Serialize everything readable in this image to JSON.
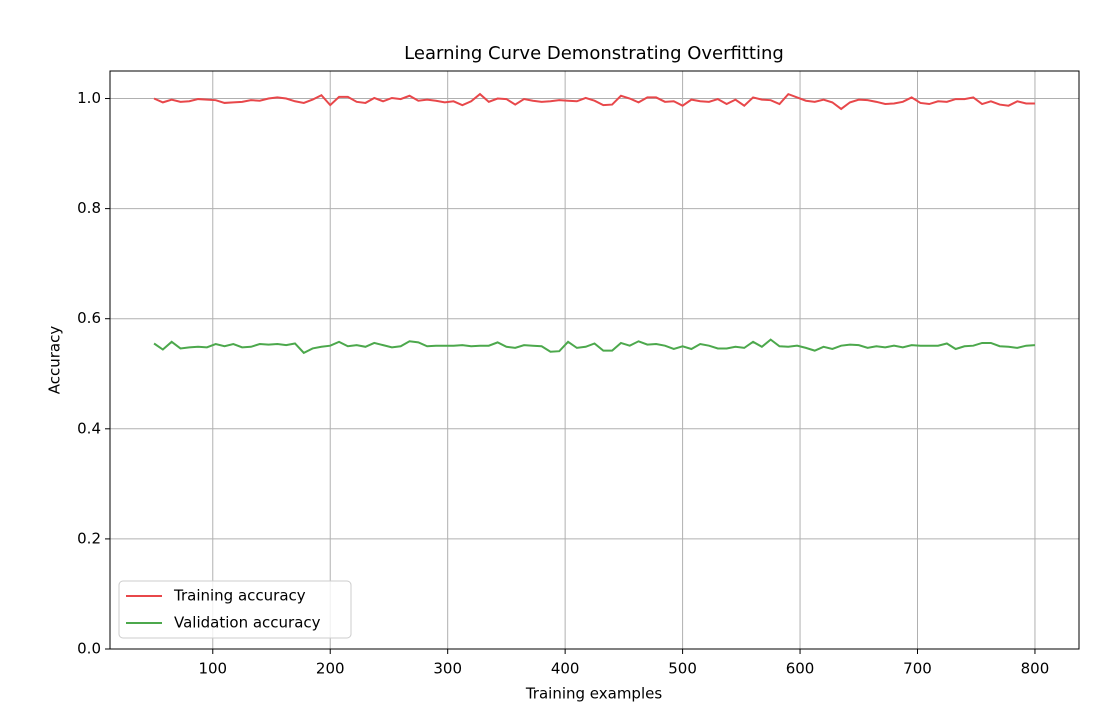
{
  "chart_data": {
    "type": "line",
    "title": "Learning Curve Demonstrating Overfitting",
    "x_label": "Training examples",
    "y_label": "Accuracy",
    "x": [
      50,
      57.5,
      65,
      72.5,
      80,
      87.5,
      95,
      102.5,
      110,
      117.5,
      125,
      132.5,
      140,
      147.5,
      155,
      162.5,
      170,
      177.5,
      185,
      192.5,
      200,
      207.5,
      215,
      222.5,
      230,
      237.5,
      245,
      252.5,
      260,
      267.5,
      275,
      282.5,
      290,
      297.5,
      305,
      312.5,
      320,
      327.5,
      335,
      342.5,
      350,
      357.5,
      365,
      372.5,
      380,
      387.5,
      395,
      402.5,
      410,
      417.5,
      425,
      432.5,
      440,
      447.5,
      455,
      462.5,
      470,
      477.5,
      485,
      492.5,
      500,
      507.5,
      515,
      522.5,
      530,
      537.5,
      545,
      552.5,
      560,
      567.5,
      575,
      582.5,
      590,
      597.5,
      605,
      612.5,
      620,
      627.5,
      635,
      642.5,
      650,
      657.5,
      665,
      672.5,
      680,
      687.5,
      695,
      702.5,
      710,
      717.5,
      725,
      732.5,
      740,
      747.5,
      755,
      762.5,
      770,
      777.5,
      785,
      792.5,
      800
    ],
    "series": [
      {
        "name": "Training accuracy",
        "color": "#e8474a",
        "values": [
          1.0,
          0.993,
          0.998,
          0.994,
          0.995,
          0.999,
          0.998,
          0.997,
          0.992,
          0.993,
          0.994,
          0.997,
          0.996,
          1.0,
          1.002,
          1.0,
          0.995,
          0.992,
          0.998,
          1.006,
          0.988,
          1.003,
          1.003,
          0.994,
          0.992,
          1.001,
          0.995,
          1.001,
          0.999,
          1.005,
          0.996,
          0.998,
          0.996,
          0.993,
          0.995,
          0.988,
          0.995,
          1.008,
          0.994,
          1.0,
          0.999,
          0.989,
          0.999,
          0.996,
          0.994,
          0.995,
          0.997,
          0.996,
          0.995,
          1.001,
          0.996,
          0.988,
          0.989,
          1.005,
          1.0,
          0.993,
          1.002,
          1.002,
          0.994,
          0.995,
          0.987,
          0.998,
          0.995,
          0.994,
          0.999,
          0.99,
          0.998,
          0.987,
          1.002,
          0.998,
          0.997,
          0.99,
          1.008,
          1.002,
          0.996,
          0.994,
          0.998,
          0.993,
          0.981,
          0.993,
          0.998,
          0.997,
          0.994,
          0.99,
          0.991,
          0.994,
          1.002,
          0.992,
          0.99,
          0.995,
          0.994,
          0.999,
          0.999,
          1.002,
          0.99,
          0.995,
          0.989,
          0.987,
          0.995,
          0.991,
          0.991
        ]
      },
      {
        "name": "Validation accuracy",
        "color": "#4ca84c",
        "values": [
          0.555,
          0.544,
          0.558,
          0.546,
          0.548,
          0.549,
          0.548,
          0.554,
          0.55,
          0.554,
          0.548,
          0.549,
          0.554,
          0.553,
          0.554,
          0.552,
          0.555,
          0.538,
          0.546,
          0.549,
          0.551,
          0.558,
          0.55,
          0.552,
          0.549,
          0.556,
          0.552,
          0.548,
          0.55,
          0.559,
          0.557,
          0.55,
          0.551,
          0.551,
          0.551,
          0.552,
          0.55,
          0.551,
          0.551,
          0.557,
          0.549,
          0.547,
          0.552,
          0.551,
          0.55,
          0.54,
          0.541,
          0.558,
          0.547,
          0.549,
          0.555,
          0.542,
          0.542,
          0.556,
          0.551,
          0.559,
          0.553,
          0.554,
          0.551,
          0.545,
          0.55,
          0.545,
          0.554,
          0.551,
          0.546,
          0.546,
          0.549,
          0.547,
          0.558,
          0.549,
          0.562,
          0.55,
          0.549,
          0.551,
          0.547,
          0.542,
          0.549,
          0.545,
          0.551,
          0.553,
          0.552,
          0.547,
          0.55,
          0.548,
          0.551,
          0.548,
          0.552,
          0.551,
          0.551,
          0.551,
          0.555,
          0.545,
          0.55,
          0.551,
          0.556,
          0.556,
          0.55,
          0.549,
          0.547,
          0.551,
          0.552
        ]
      }
    ],
    "xlim": [
      12.5,
      837.5
    ],
    "ylim": [
      0,
      1.05
    ],
    "xticks": [
      100,
      200,
      300,
      400,
      500,
      600,
      700,
      800
    ],
    "yticks": [
      {
        "value": 0,
        "label": "0.0"
      },
      0.2,
      0.4,
      0.6,
      0.8,
      {
        "value": 1,
        "label": "1.0"
      }
    ],
    "grid": true,
    "legend": "lower left"
  }
}
